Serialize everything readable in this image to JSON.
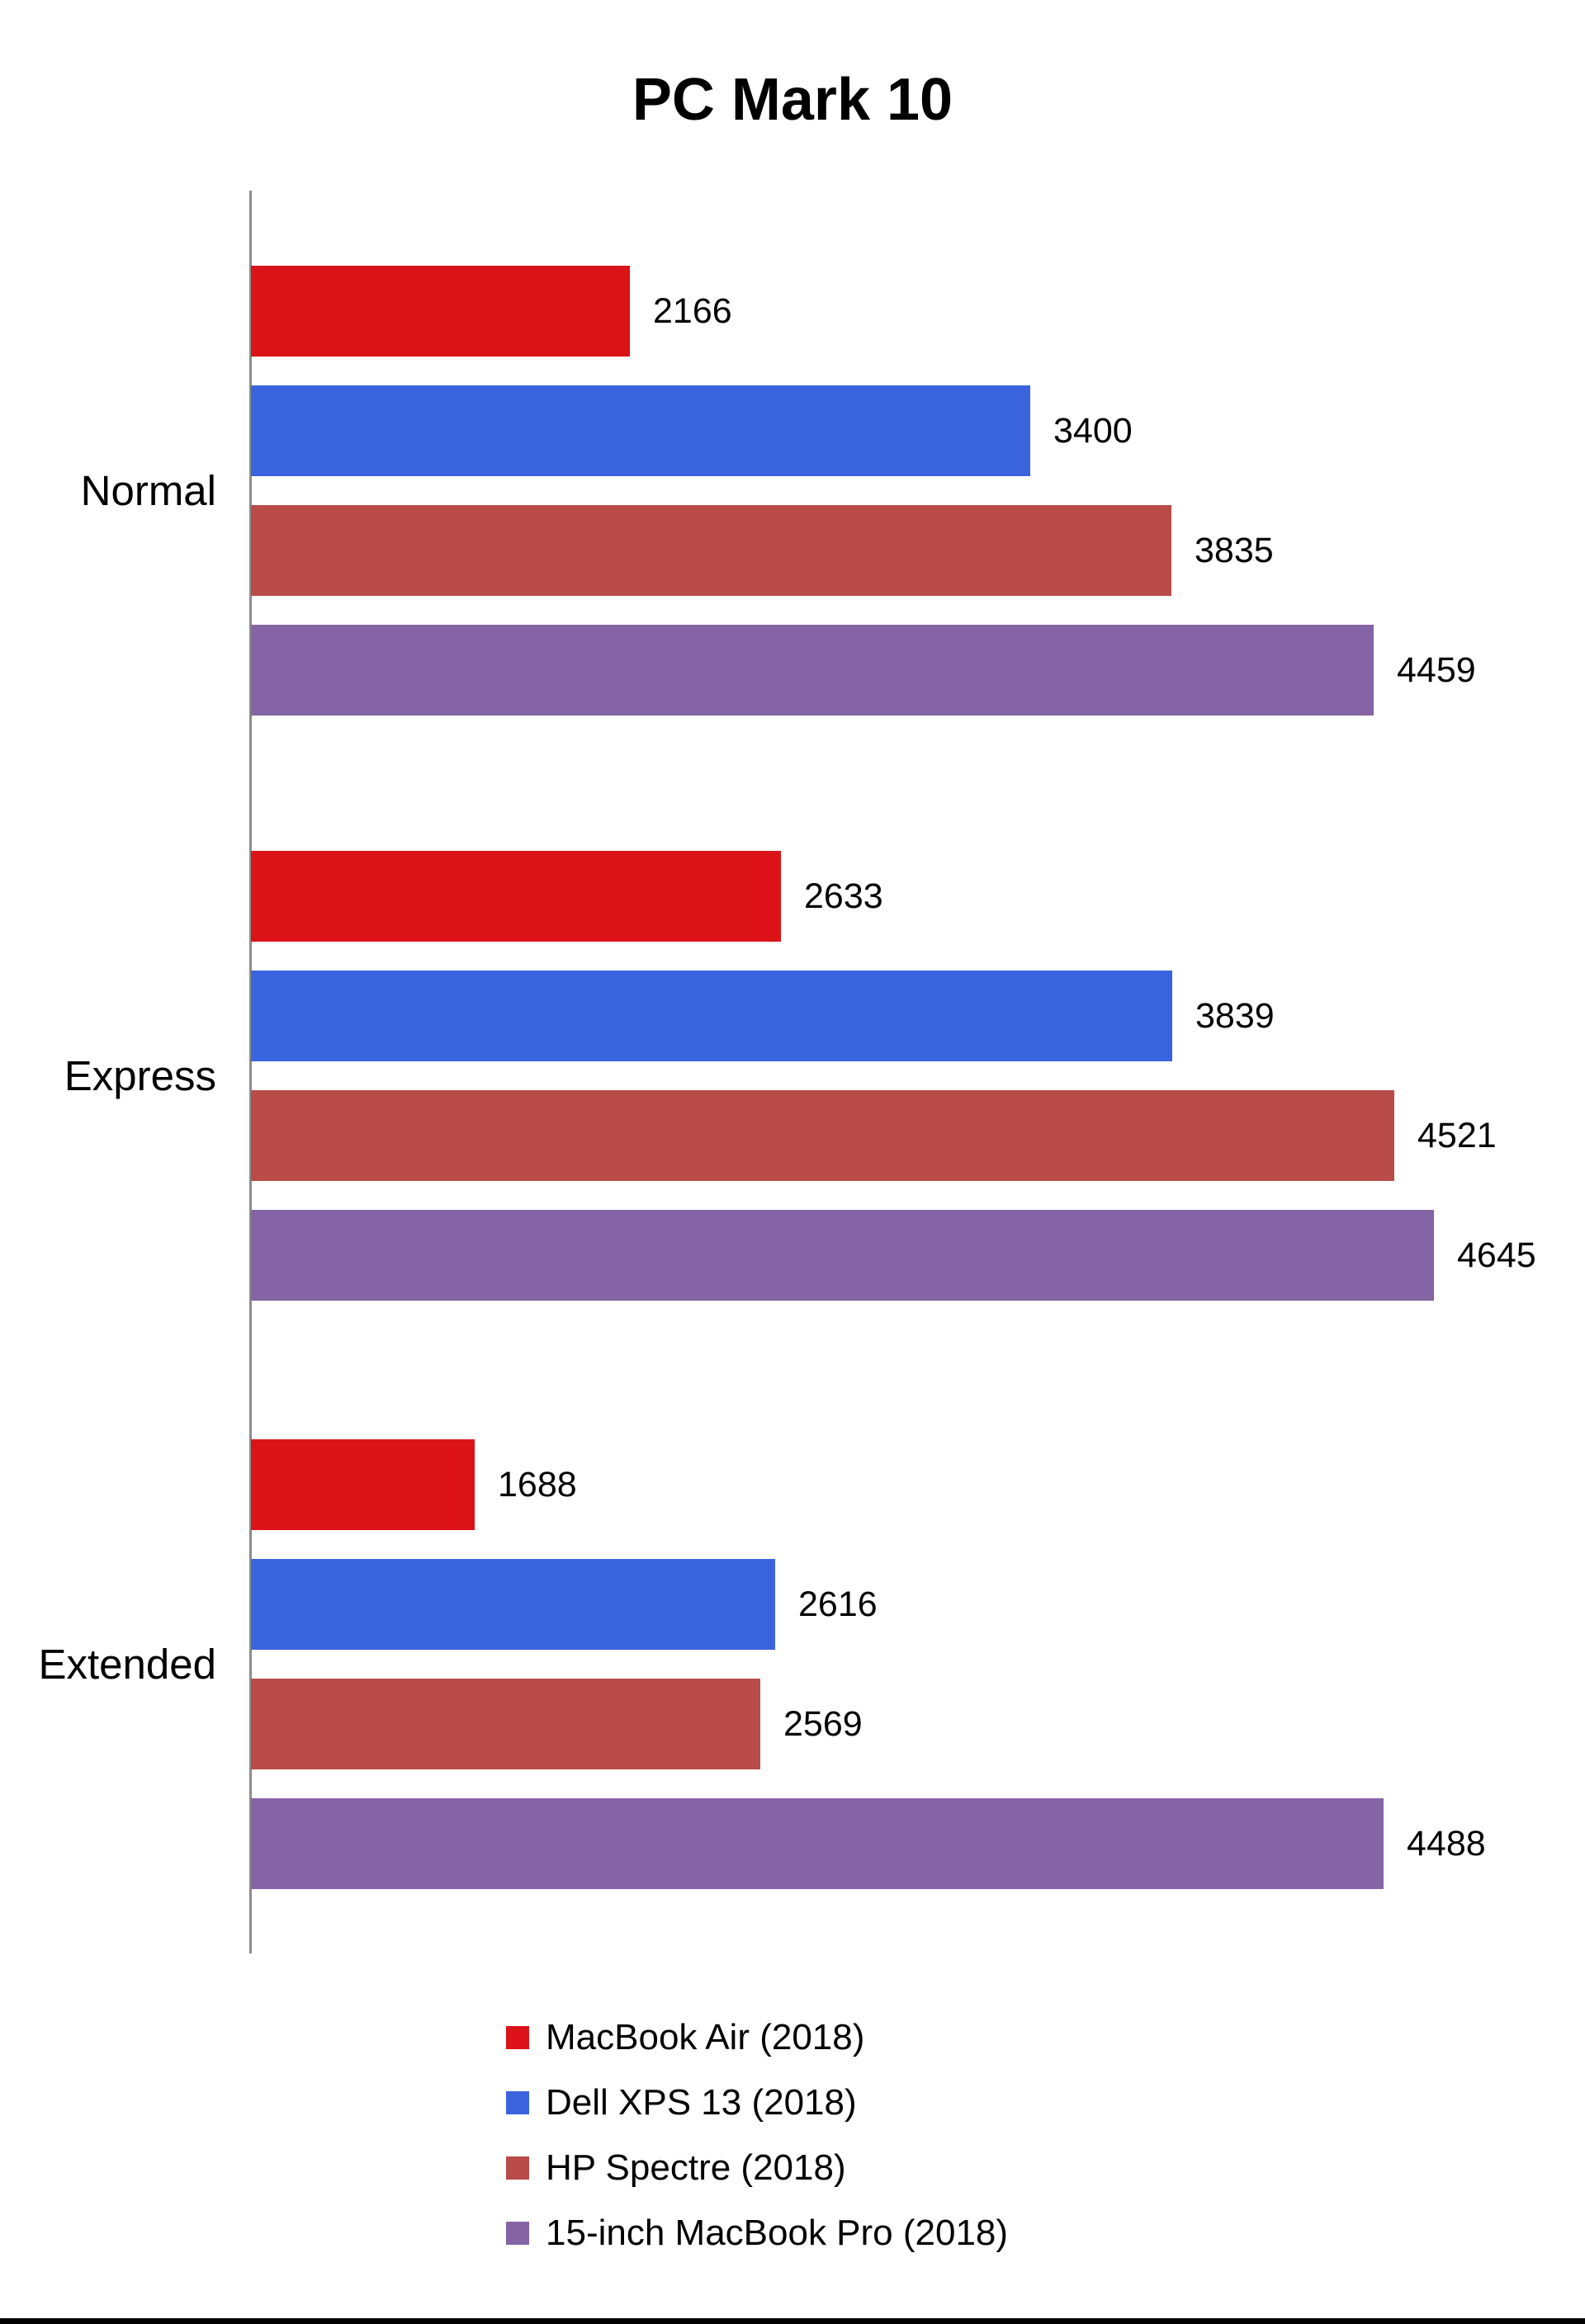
{
  "chart_data": {
    "type": "bar",
    "orientation": "horizontal",
    "title": "PC Mark 10",
    "categories": [
      "Normal",
      "Express",
      "Extended"
    ],
    "series": [
      {
        "name": "MacBook Air (2018)",
        "color": "#db1318",
        "values": [
          2166,
          2633,
          1688
        ]
      },
      {
        "name": "Dell XPS 13 (2018)",
        "color": "#3a64de",
        "values": [
          3400,
          3839,
          2616
        ]
      },
      {
        "name": "HP Spectre (2018)",
        "color": "#b94c49",
        "values": [
          3835,
          4521,
          2569
        ]
      },
      {
        "name": "15-inch MacBook Pro (2018)",
        "color": "#8464a4",
        "values": [
          4459,
          4645,
          4488
        ]
      }
    ],
    "xlim": [
      1000,
      4700
    ],
    "grid": false,
    "value_labels": true,
    "legend_position": "bottom-left"
  }
}
